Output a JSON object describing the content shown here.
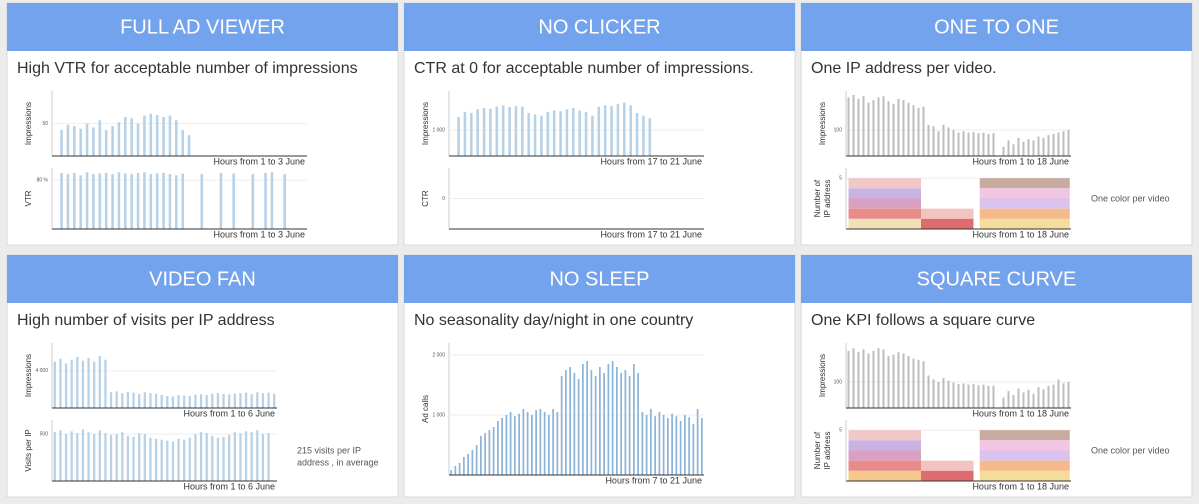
{
  "cards": [
    {
      "title": "FULL AD VIEWER",
      "subtitle": "High VTR for acceptable number of impressions",
      "charts": [
        {
          "ylabel": [
            "Impressions"
          ],
          "xlabel": "Hours from 1 to 3 June",
          "color": "#b7d1e6",
          "ylim": [
            0,
            100
          ],
          "yticks": [
            50
          ],
          "values": [
            0,
            40,
            48,
            46,
            42,
            50,
            44,
            55,
            40,
            46,
            52,
            60,
            58,
            50,
            62,
            65,
            63,
            60,
            62,
            55,
            40,
            32,
            0,
            0,
            0,
            0,
            0,
            0,
            0,
            0,
            0,
            0,
            0,
            0,
            0,
            0,
            0,
            0,
            0,
            0
          ]
        },
        {
          "ylabel": [
            "VTR"
          ],
          "xlabel": "Hours from 1 to 3 June",
          "color": "#b7d1e6",
          "ylim": [
            0,
            100
          ],
          "yticks": [
            {
              "value": 80,
              "label": "80 %"
            }
          ],
          "values": [
            0,
            92,
            90,
            92,
            88,
            93,
            90,
            91,
            92,
            90,
            93,
            91,
            90,
            92,
            93,
            90,
            91,
            92,
            90,
            88,
            91,
            0,
            0,
            90,
            0,
            0,
            92,
            0,
            91,
            0,
            0,
            90,
            0,
            92,
            93,
            0,
            90,
            0,
            0,
            0
          ]
        }
      ]
    },
    {
      "title": "NO CLICKER",
      "subtitle": "CTR at 0  for acceptable number of impressions.",
      "charts": [
        {
          "ylabel": [
            "Impressions"
          ],
          "xlabel": "Hours from 17 to 21 June",
          "color": "#b7d1e6",
          "ylim": [
            0,
            2500
          ],
          "yticks": [
            {
              "value": 1000,
              "label": "1 000"
            }
          ],
          "values": [
            0,
            1500,
            1700,
            1650,
            1800,
            1850,
            1820,
            1900,
            1950,
            1880,
            1920,
            1900,
            1650,
            1600,
            1550,
            1700,
            1750,
            1720,
            1800,
            1850,
            1750,
            1700,
            1550,
            1900,
            1950,
            1920,
            2000,
            2050,
            1950,
            1650,
            1550,
            1450,
            0,
            0,
            0,
            0,
            0,
            0,
            0,
            0
          ]
        },
        {
          "ylabel": [
            "CTR"
          ],
          "xlabel": "Hours from 17 to 21 June",
          "color": "#b7d1e6",
          "ylim": [
            -1,
            1
          ],
          "yticks": [
            0
          ],
          "values": [
            0,
            0,
            0,
            0,
            0,
            0,
            0,
            0,
            0,
            0,
            0,
            0,
            0,
            0,
            0,
            0,
            0,
            0,
            0,
            0,
            0,
            0,
            0,
            0,
            0,
            0,
            0,
            0,
            0,
            0
          ]
        }
      ]
    },
    {
      "title": "ONE TO ONE",
      "subtitle": "One IP address per video.",
      "note": [
        "One color per video"
      ],
      "charts": [
        {
          "ylabel": [
            "Impressions"
          ],
          "xlabel": "Hours from 1 to 18 June",
          "color": "#bdbdbd",
          "ylim": [
            0,
            250
          ],
          "yticks": [
            100
          ],
          "values": [
            225,
            235,
            220,
            230,
            205,
            215,
            225,
            230,
            210,
            200,
            220,
            215,
            205,
            195,
            185,
            190,
            120,
            115,
            95,
            120,
            110,
            100,
            90,
            95,
            90,
            92,
            88,
            90,
            85,
            88,
            0,
            35,
            60,
            45,
            70,
            55,
            65,
            60,
            75,
            70,
            80,
            85,
            90,
            95,
            100
          ]
        },
        {
          "ylabel": [
            "Number of",
            "IP address"
          ],
          "xlabel": "Hours from 1 to 18 June",
          "ylim": [
            0,
            6
          ],
          "xlim": [
            0,
            18
          ],
          "yticks": [
            5
          ],
          "segments": [
            {
              "x": [
                0.2,
                6
              ],
              "ips": 5,
              "colors": [
                "#f1c8c5",
                "#c9b3e3",
                "#d9a0c2",
                "#e88c8a",
                "#efe2b8"
              ]
            },
            {
              "x": [
                6,
                10.2
              ],
              "ips": 2,
              "colors": [
                "#f3c3c1",
                "#e06b6e"
              ]
            },
            {
              "x": [
                10.7,
                17.9
              ],
              "ips": 5,
              "colors": [
                "#c7aaa0",
                "#f2c6e2",
                "#d9c3ee",
                "#f6b98a",
                "#f4dd9a"
              ]
            }
          ]
        }
      ]
    },
    {
      "title": "VIDEO FAN",
      "subtitle": "High number of visits per IP address",
      "note": [
        "215 visits per IP",
        "address , in average"
      ],
      "charts": [
        {
          "ylabel": [
            "Impressions"
          ],
          "xlabel": "Hours from 1 to 6 June",
          "color": "#b7d1e6",
          "ylim": [
            0,
            7000
          ],
          "yticks": [
            {
              "value": 4000,
              "label": "4 000"
            }
          ],
          "values": [
            5000,
            5300,
            4800,
            5200,
            5500,
            5100,
            5400,
            5000,
            5600,
            5200,
            1700,
            1800,
            1600,
            1750,
            1650,
            1500,
            1700,
            1600,
            1550,
            1400,
            1300,
            1250,
            1400,
            1350,
            1300,
            1450,
            1500,
            1400,
            1550,
            1600,
            1500,
            1450,
            1550,
            1600,
            1650,
            1500,
            1700,
            1600,
            1650,
            1550
          ]
        },
        {
          "ylabel": [
            "Visits per IP"
          ],
          "xlabel": "Hours from 1 to 6 June",
          "color": "#b7d1e6",
          "ylim": [
            0,
            650
          ],
          "yticks": [
            500
          ],
          "values": [
            520,
            540,
            500,
            530,
            510,
            550,
            520,
            500,
            540,
            510,
            490,
            500,
            520,
            480,
            470,
            510,
            500,
            460,
            450,
            440,
            430,
            420,
            450,
            440,
            460,
            500,
            520,
            510,
            480,
            460,
            470,
            490,
            520,
            510,
            530,
            520,
            540,
            500,
            510,
            0
          ]
        }
      ]
    },
    {
      "title": "NO SLEEP",
      "subtitle": "No seasonality day/night in one country",
      "charts": [
        {
          "ylabel": [
            "Ad calls"
          ],
          "xlabel": "Hours from 7 to 21 June",
          "color": "#8ab4d9",
          "ylim": [
            0,
            2200
          ],
          "yticks": [
            {
              "value": 1000,
              "label": "1 000"
            },
            {
              "value": 2000,
              "label": "2 000"
            }
          ],
          "values": [
            80,
            150,
            200,
            300,
            350,
            420,
            500,
            650,
            700,
            750,
            800,
            900,
            950,
            1000,
            1050,
            980,
            1020,
            1100,
            1050,
            1000,
            1080,
            1100,
            1050,
            1000,
            1100,
            1050,
            1650,
            1750,
            1800,
            1700,
            1600,
            1850,
            1900,
            1750,
            1650,
            1800,
            1700,
            1850,
            1900,
            1800,
            1700,
            1750,
            1650,
            1850,
            1700,
            1050,
            1000,
            1100,
            980,
            1050,
            1000,
            950,
            1020,
            980,
            900,
            1000,
            960,
            850,
            1100,
            950
          ]
        }
      ]
    },
    {
      "title": "SQUARE CURVE",
      "subtitle": "One KPI follows a square curve",
      "note": [
        "One color per video"
      ],
      "charts": [
        {
          "ylabel": [
            "Impressions"
          ],
          "xlabel": "Hours from 1 to 18 June",
          "color": "#bdbdbd",
          "ylim": [
            0,
            250
          ],
          "yticks": [
            100
          ],
          "values": [
            220,
            230,
            215,
            225,
            210,
            220,
            230,
            225,
            200,
            205,
            215,
            210,
            200,
            190,
            185,
            180,
            125,
            110,
            100,
            115,
            105,
            98,
            92,
            95,
            90,
            92,
            88,
            90,
            85,
            86,
            0,
            40,
            65,
            50,
            75,
            60,
            70,
            55,
            80,
            72,
            85,
            90,
            110,
            95,
            100
          ]
        },
        {
          "ylabel": [
            "Number of",
            "IP address"
          ],
          "xlabel": "Hours from 1 to 18 June",
          "ylim": [
            0,
            6
          ],
          "xlim": [
            0,
            18
          ],
          "yticks": [
            5
          ],
          "segments": [
            {
              "x": [
                0.2,
                6
              ],
              "ips": 5,
              "colors": [
                "#f1c8c5",
                "#c9b3e3",
                "#d9a0c2",
                "#e88c8a",
                "#f4c98d"
              ]
            },
            {
              "x": [
                6,
                10.2
              ],
              "ips": 2,
              "colors": [
                "#f3c3c1",
                "#e06b6e"
              ]
            },
            {
              "x": [
                10.7,
                17.9
              ],
              "ips": 5,
              "colors": [
                "#c7aaa0",
                "#f2c6e2",
                "#d9c3ee",
                "#f6b98a",
                "#f4dd9a"
              ]
            }
          ]
        }
      ]
    }
  ]
}
